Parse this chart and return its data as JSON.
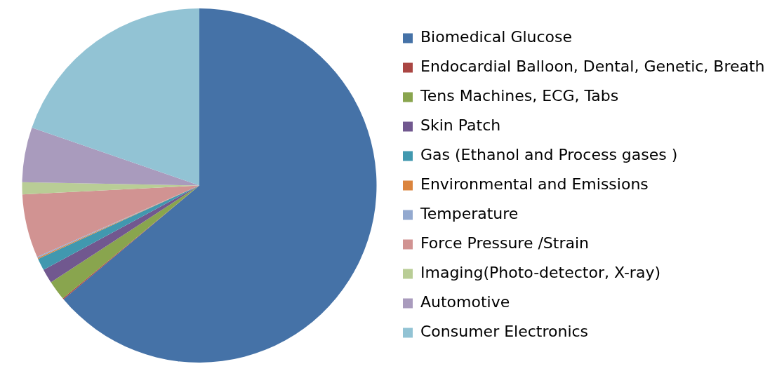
{
  "chart_data": {
    "type": "pie",
    "legend": "right",
    "categories": [
      "Biomedical Glucose",
      "Endocardial Balloon, Dental, Genetic, Breath",
      "Tens Machines, ECG, Tabs",
      "Skin Patch",
      "Gas (Ethanol and Process gases )",
      "Environmental and Emissions",
      "Temperature",
      "Force Pressure /Strain",
      "Imaging(Photo-detector, X-ray)",
      "Automotive",
      "Consumer Electronics"
    ],
    "values": [
      63.9,
      0.1,
      1.8,
      1.3,
      1.1,
      0.1,
      0.1,
      5.8,
      1.1,
      5.0,
      19.7
    ],
    "colors": [
      "#4572a7",
      "#aa4643",
      "#89a54e",
      "#71588f",
      "#4198af",
      "#db843d",
      "#93a9cf",
      "#d19392",
      "#b9cd96",
      "#a99bbd",
      "#92c3d4"
    ]
  }
}
